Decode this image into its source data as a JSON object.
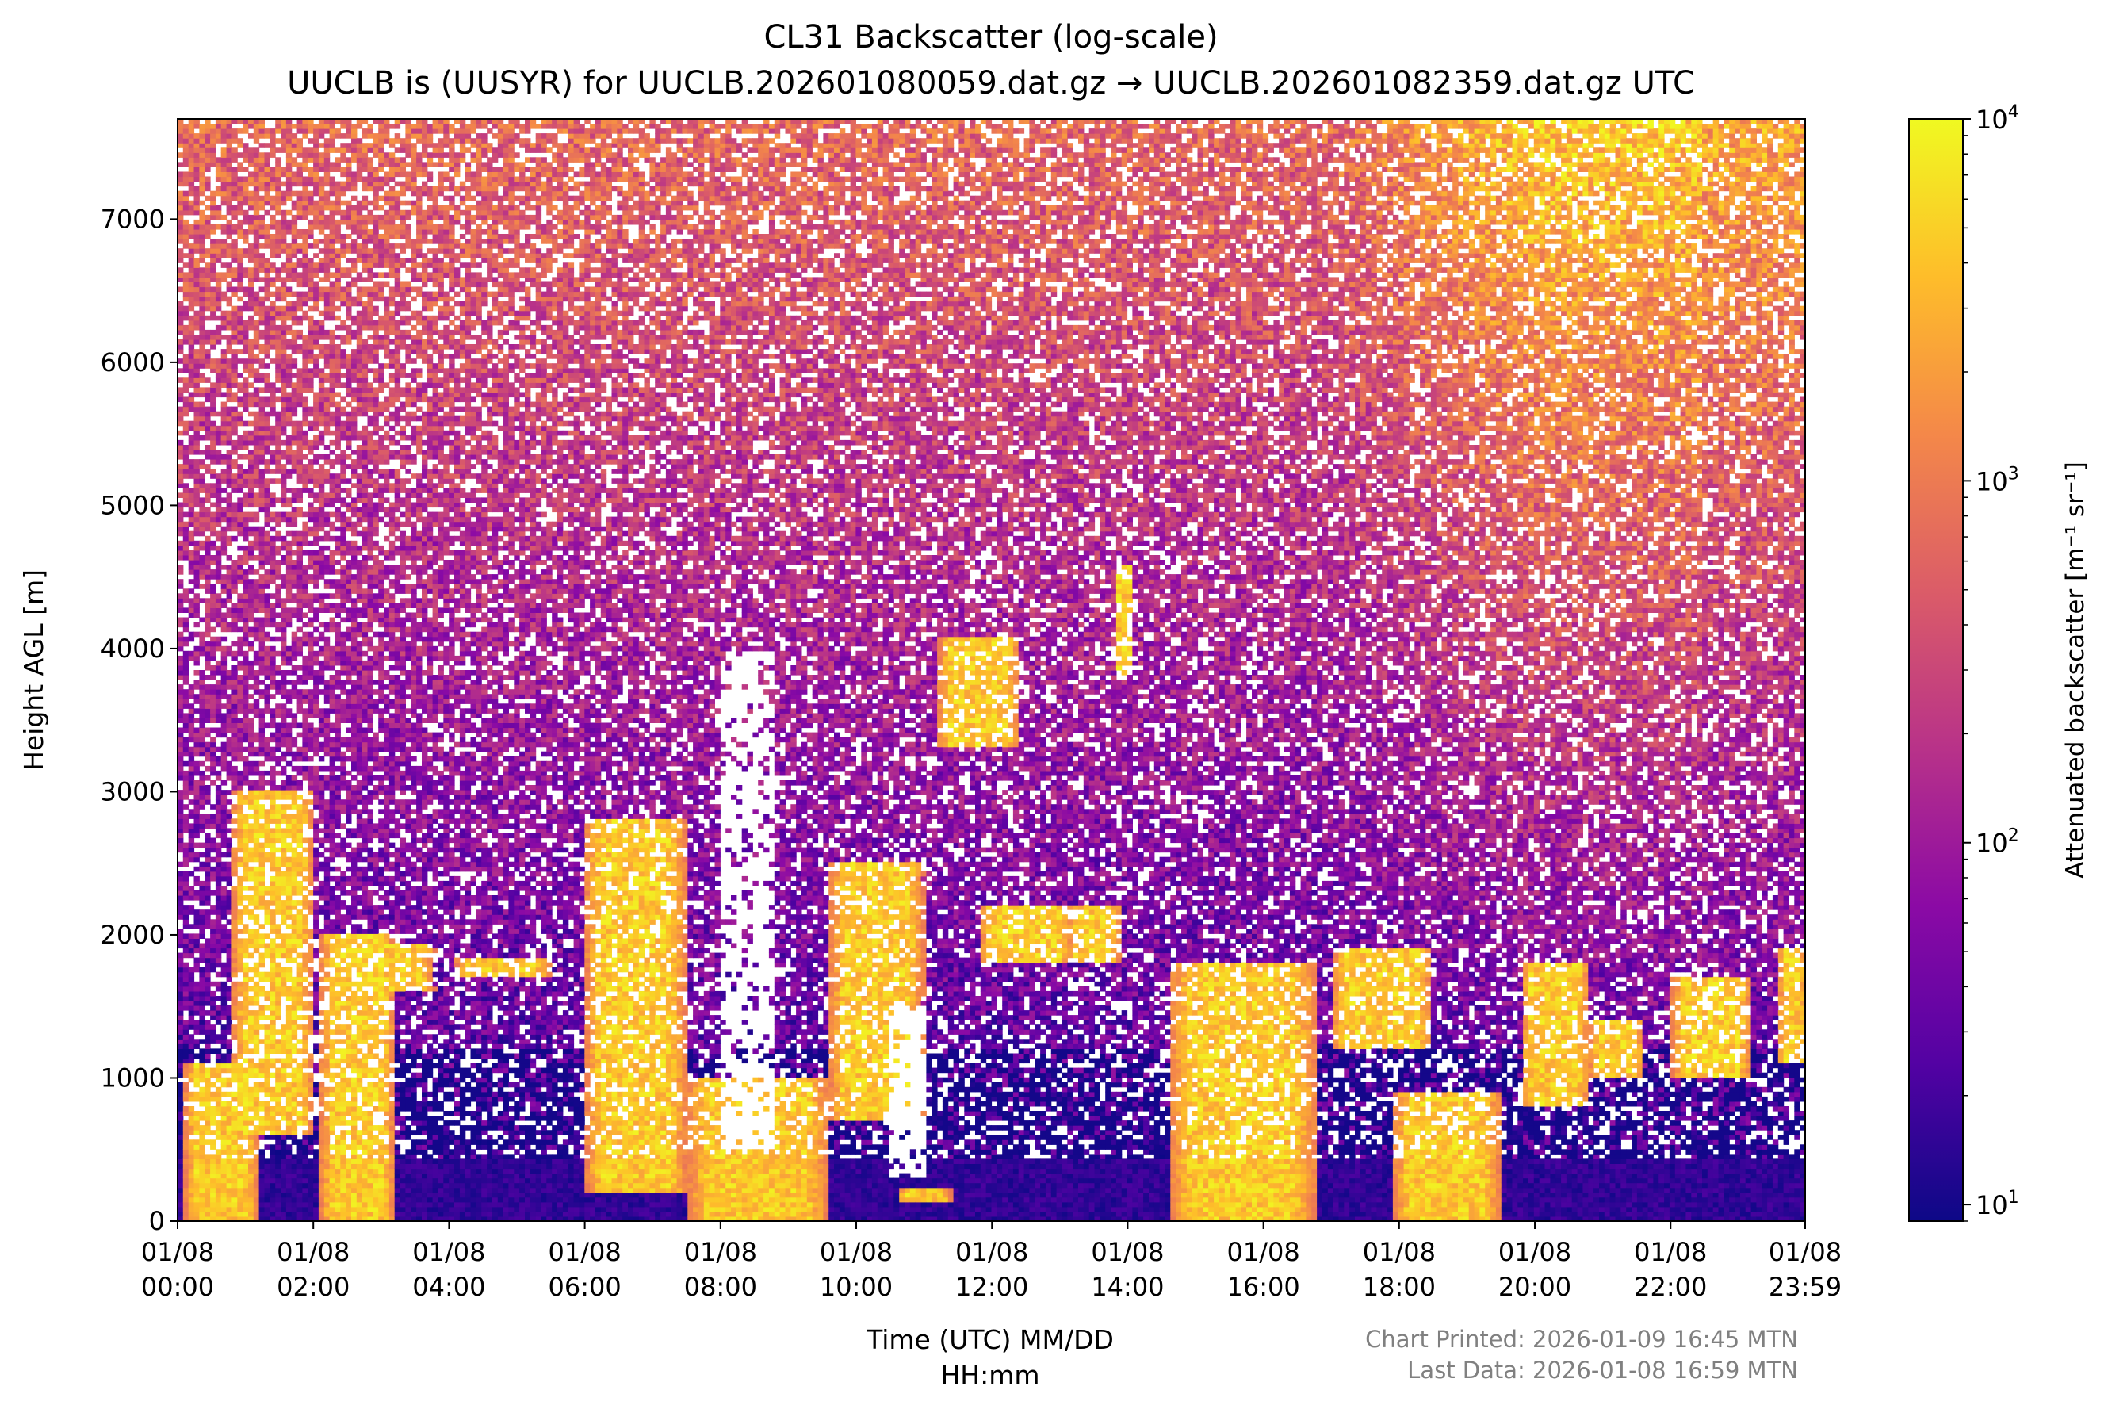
{
  "chart_data": {
    "type": "heatmap",
    "title": "CL31 Backscatter (log-scale)",
    "subtitle": "UUCLB is (UUSYR) for UUCLB.202601080059.dat.gz → UUCLB.202601082359.dat.gz UTC",
    "xlabel_line1": "Time (UTC) MM/DD",
    "xlabel_line2": "HH:mm",
    "ylabel": "Height AGL [m]",
    "xlim_hours": [
      0,
      23.983
    ],
    "ylim": [
      0,
      7700
    ],
    "y_ticks": [
      0,
      1000,
      2000,
      3000,
      4000,
      5000,
      6000,
      7000
    ],
    "x_ticks": [
      {
        "h": 0,
        "date": "01/08",
        "time": "00:00"
      },
      {
        "h": 2,
        "date": "01/08",
        "time": "02:00"
      },
      {
        "h": 4,
        "date": "01/08",
        "time": "04:00"
      },
      {
        "h": 6,
        "date": "01/08",
        "time": "06:00"
      },
      {
        "h": 8,
        "date": "01/08",
        "time": "08:00"
      },
      {
        "h": 10,
        "date": "01/08",
        "time": "10:00"
      },
      {
        "h": 12,
        "date": "01/08",
        "time": "12:00"
      },
      {
        "h": 14,
        "date": "01/08",
        "time": "14:00"
      },
      {
        "h": 16,
        "date": "01/08",
        "time": "16:00"
      },
      {
        "h": 18,
        "date": "01/08",
        "time": "18:00"
      },
      {
        "h": 20,
        "date": "01/08",
        "time": "20:00"
      },
      {
        "h": 22,
        "date": "01/08",
        "time": "22:00"
      },
      {
        "h": 23.983,
        "date": "01/08",
        "time": "23:59"
      }
    ],
    "colorbar": {
      "label": "Attenuated backscatter [m⁻¹ sr⁻¹]",
      "scale": "log",
      "range": [
        9,
        10000
      ],
      "ticks": [
        {
          "value": 10,
          "base": "10",
          "exp": "1"
        },
        {
          "value": 100,
          "base": "10",
          "exp": "2"
        },
        {
          "value": 1000,
          "base": "10",
          "exp": "3"
        },
        {
          "value": 10000,
          "base": "10",
          "exp": "4"
        }
      ],
      "colormap": "plasma",
      "colors": [
        "#0d0887",
        "#5302a3",
        "#8b0aa5",
        "#b83289",
        "#db5c68",
        "#f48849",
        "#febd2a",
        "#f0f921"
      ]
    },
    "features": [
      {
        "desc": "near-surface aerosol layer",
        "h_start": 0,
        "h_end": 23.983,
        "base_m": 0,
        "top_m": 450
      },
      {
        "desc": "cloud",
        "h_start": 0.1,
        "h_end": 1.2,
        "base_m": 0,
        "top_m": 1100
      },
      {
        "desc": "cloud",
        "h_start": 0.8,
        "h_end": 2.0,
        "base_m": 600,
        "top_m": 3000
      },
      {
        "desc": "cloud",
        "h_start": 2.1,
        "h_end": 3.2,
        "base_m": 0,
        "top_m": 2000
      },
      {
        "desc": "cloud",
        "h_start": 2.4,
        "h_end": 3.8,
        "base_m": 1600,
        "top_m": 1950
      },
      {
        "desc": "cloud",
        "h_start": 4.1,
        "h_end": 5.5,
        "base_m": 1700,
        "top_m": 1850
      },
      {
        "desc": "cloud",
        "h_start": 6.0,
        "h_end": 7.5,
        "base_m": 200,
        "top_m": 2800
      },
      {
        "desc": "cloud",
        "h_start": 7.5,
        "h_end": 9.6,
        "base_m": 0,
        "top_m": 1000
      },
      {
        "desc": "cloud",
        "h_start": 9.6,
        "h_end": 11.0,
        "base_m": 700,
        "top_m": 2500
      },
      {
        "desc": "cloud",
        "h_start": 10.6,
        "h_end": 11.4,
        "base_m": 150,
        "top_m": 250
      },
      {
        "desc": "cloud",
        "h_start": 11.2,
        "h_end": 12.4,
        "base_m": 3300,
        "top_m": 4100
      },
      {
        "desc": "cloud",
        "h_start": 11.8,
        "h_end": 13.2,
        "base_m": 1800,
        "top_m": 2200
      },
      {
        "desc": "cloud",
        "h_start": 13.1,
        "h_end": 13.9,
        "base_m": 1800,
        "top_m": 2200
      },
      {
        "desc": "cloud",
        "h_start": 13.8,
        "h_end": 14.1,
        "base_m": 3800,
        "top_m": 4600
      },
      {
        "desc": "cloud",
        "h_start": 14.6,
        "h_end": 16.8,
        "base_m": 0,
        "top_m": 1800
      },
      {
        "desc": "cloud",
        "h_start": 17.0,
        "h_end": 18.5,
        "base_m": 1200,
        "top_m": 1900
      },
      {
        "desc": "cloud",
        "h_start": 17.9,
        "h_end": 19.5,
        "base_m": 0,
        "top_m": 900
      },
      {
        "desc": "cloud",
        "h_start": 19.8,
        "h_end": 20.8,
        "base_m": 800,
        "top_m": 1800
      },
      {
        "desc": "cloud",
        "h_start": 20.8,
        "h_end": 21.6,
        "base_m": 1000,
        "top_m": 1400
      },
      {
        "desc": "cloud",
        "h_start": 22.0,
        "h_end": 23.2,
        "base_m": 1000,
        "top_m": 1700
      },
      {
        "desc": "cloud",
        "h_start": 23.6,
        "h_end": 23.983,
        "base_m": 1100,
        "top_m": 1900
      },
      {
        "desc": "no-signal gap",
        "h_start": 8.0,
        "h_end": 8.8,
        "base_m": 500,
        "top_m": 4000
      },
      {
        "desc": "no-signal gap",
        "h_start": 10.5,
        "h_end": 11.0,
        "base_m": 300,
        "top_m": 1500
      }
    ]
  },
  "footer": {
    "printed": "Chart Printed: 2026-01-09 16:45 MTN",
    "last_data": "Last Data: 2026-01-08 16:59 MTN"
  }
}
